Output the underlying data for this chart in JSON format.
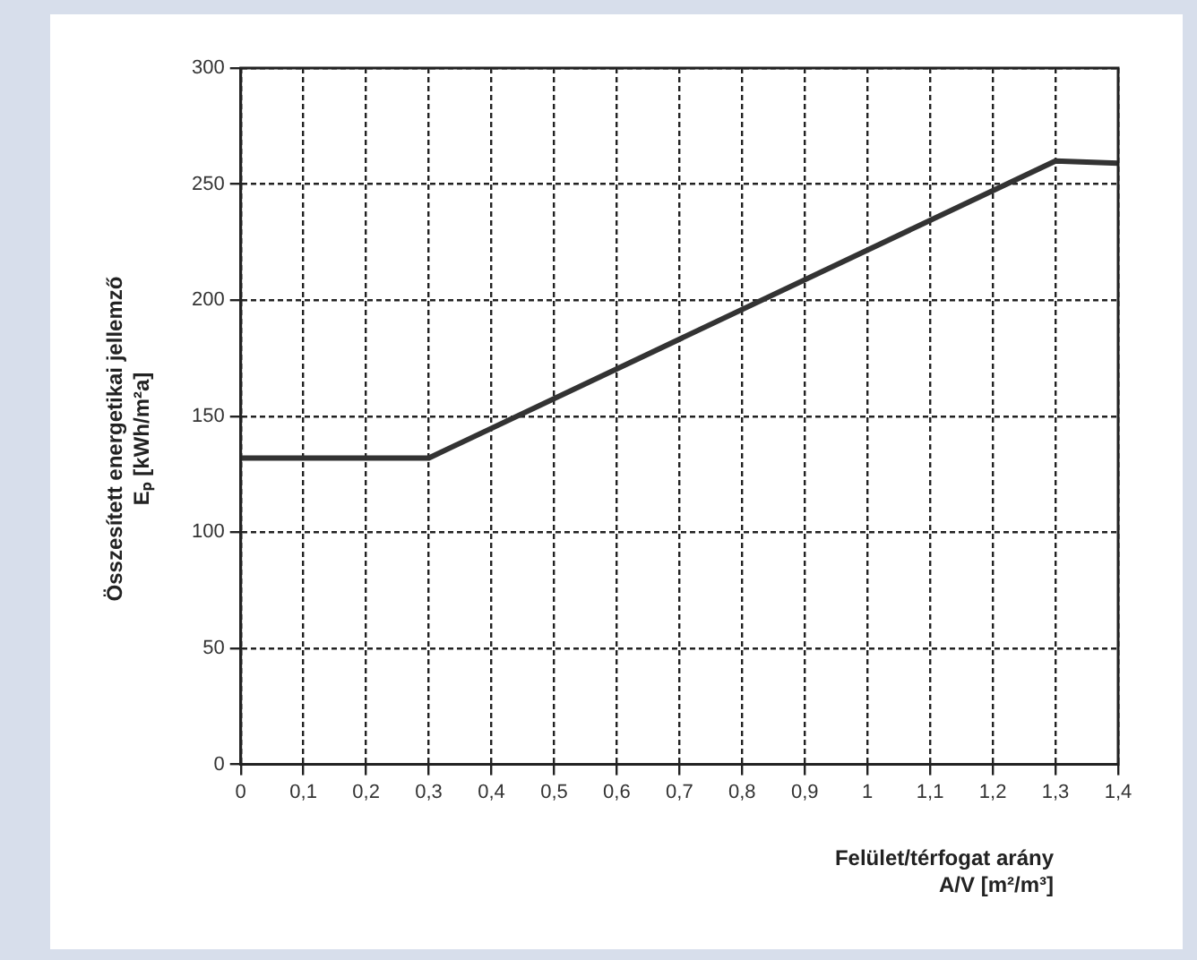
{
  "chart_data": {
    "type": "line",
    "xlabel": "Felület/térfogat arány\nA/V [m²/m³]",
    "ylabel": "Összesített energetikai jellemző\nEₚ [kWh/m²a]",
    "x": [
      0,
      0.3,
      1.3,
      1.4
    ],
    "series": [
      {
        "color": "#333333",
        "values": [
          132,
          132,
          260,
          259
        ]
      }
    ],
    "xlim": [
      0,
      1.4
    ],
    "xticks": [
      0,
      {
        "value": 0.1,
        "label": "0,1"
      },
      {
        "value": 0.2,
        "label": "0,2"
      },
      {
        "value": 0.3,
        "label": "0,3"
      },
      {
        "value": 0.4,
        "label": "0,4"
      },
      {
        "value": 0.5,
        "label": "0,5"
      },
      {
        "value": 0.6,
        "label": "0,6"
      },
      {
        "value": 0.7,
        "label": "0,7"
      },
      {
        "value": 0.8,
        "label": "0,8"
      },
      {
        "value": 0.9,
        "label": "0,9"
      },
      1,
      {
        "value": 1.1,
        "label": "1,1"
      },
      {
        "value": 1.2,
        "label": "1,2"
      },
      {
        "value": 1.3,
        "label": "1,3"
      },
      {
        "value": 1.4,
        "label": "1,4"
      }
    ],
    "ylim": [
      0,
      300
    ],
    "yticks": [
      0,
      50,
      100,
      150,
      200,
      250,
      300
    ],
    "grid": true,
    "legend": false,
    "marker": "none",
    "line_style": "solid"
  }
}
